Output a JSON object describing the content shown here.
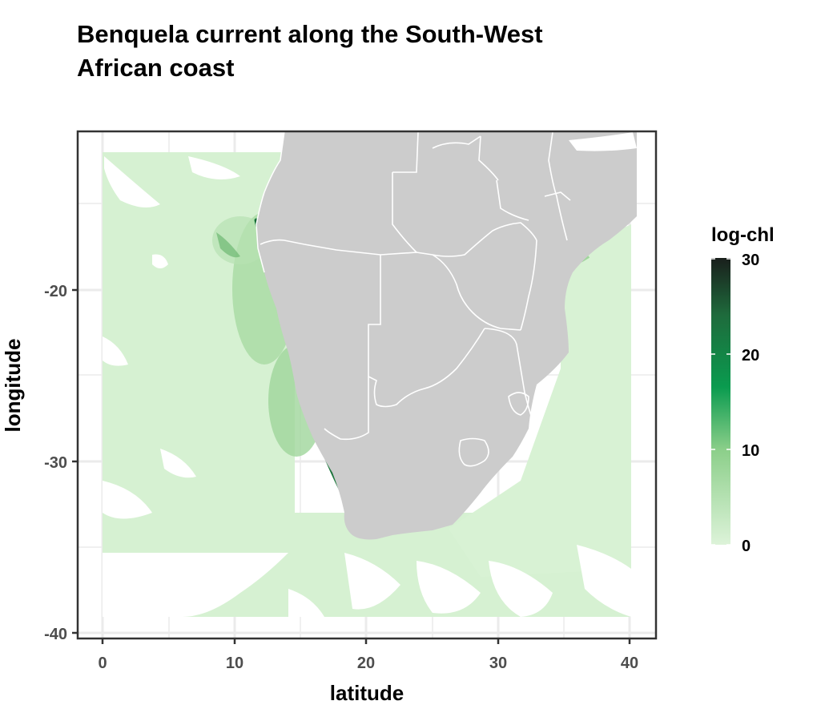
{
  "title_line1": "Benquela current along  the  South-West",
  "title_line2": "African  coast",
  "chart_data": {
    "type": "heatmap",
    "title": "Benquela current along the South-West African coast",
    "xlabel": "latitude",
    "ylabel": "longitude",
    "xlim": [
      -2,
      42
    ],
    "ylim": [
      -40.3,
      -13.8
    ],
    "x_ticks": [
      0,
      10,
      20,
      30,
      40
    ],
    "y_ticks": [
      -20,
      -30,
      -40
    ],
    "x_tick_labels": [
      "0",
      "10",
      "20",
      "30",
      "40"
    ],
    "y_tick_labels": [
      "-20",
      "-30",
      "-40"
    ],
    "grid": true,
    "legend": {
      "title": "log-chl",
      "position": "right",
      "breaks": [
        0,
        10,
        20,
        30
      ],
      "break_labels": [
        "0",
        "10",
        "20",
        "30"
      ],
      "range": [
        0,
        30
      ],
      "colors": [
        "#ddf3d9",
        "#8ccf8a",
        "#0a9b4f",
        "#1e6b3c",
        "#1a1f1c"
      ]
    },
    "land_color": "#cccccc",
    "border_color": "#ffffff",
    "high_values_region": "coastal upwelling along South-West African coast (approx. 11-18 E, 16-34 S)"
  }
}
